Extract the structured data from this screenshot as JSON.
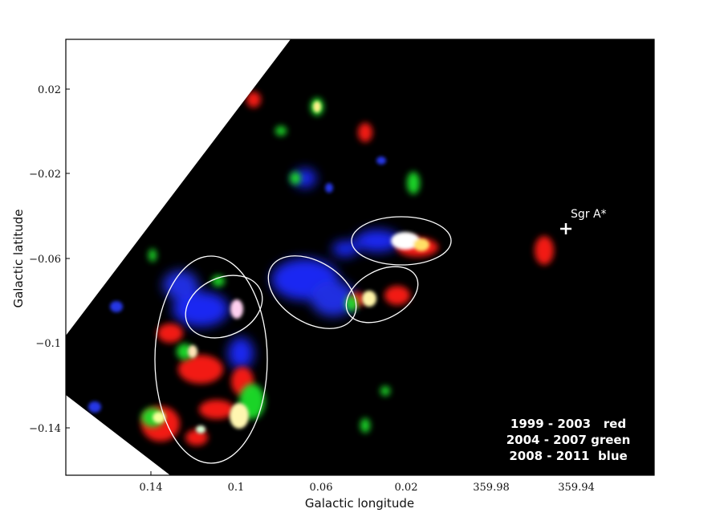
{
  "figure": {
    "xlabel": "Galactic longitude",
    "ylabel": "Galactic latitude",
    "x_ticks": [
      "0.14",
      "0.1",
      "0.06",
      "0.02",
      "359.98",
      "359.94"
    ],
    "y_ticks": [
      "0.02",
      "−0.02",
      "−0.06",
      "−0.1",
      "−0.14"
    ],
    "marker_label": "Sgr A*",
    "legend": [
      "1999 - 2003   red",
      "2004 - 2007 green",
      "2008 - 2011  blue"
    ],
    "epoch_colors": [
      "#ff2a1a",
      "#22e032",
      "#2a3cff"
    ],
    "background_color": "#000000"
  }
}
